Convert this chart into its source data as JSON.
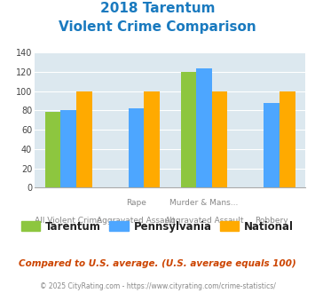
{
  "title_line1": "2018 Tarentum",
  "title_line2": "Violent Crime Comparison",
  "series": {
    "Tarentum": [
      79,
      0,
      120,
      0
    ],
    "Pennsylvania": [
      80,
      82,
      124,
      88
    ],
    "National": [
      100,
      100,
      100,
      100
    ]
  },
  "colors": {
    "Tarentum": "#8dc63f",
    "Pennsylvania": "#4da6ff",
    "National": "#ffaa00"
  },
  "top_labels": [
    "",
    "Rape",
    "Murder & Mans...",
    ""
  ],
  "bottom_labels": [
    "All Violent Crime",
    "Aggravated Assault",
    "Aggravated Assault",
    "Robbery"
  ],
  "ylim": [
    0,
    140
  ],
  "yticks": [
    0,
    20,
    40,
    60,
    80,
    100,
    120,
    140
  ],
  "title_color": "#1a7abf",
  "bg_color": "#dce8ef",
  "footer_text": "© 2025 CityRating.com - https://www.cityrating.com/crime-statistics/",
  "comparison_text": "Compared to U.S. average. (U.S. average equals 100)",
  "comparison_color": "#cc4400",
  "footer_color": "#888888",
  "legend_labels": [
    "Tarentum",
    "Pennsylvania",
    "National"
  ]
}
